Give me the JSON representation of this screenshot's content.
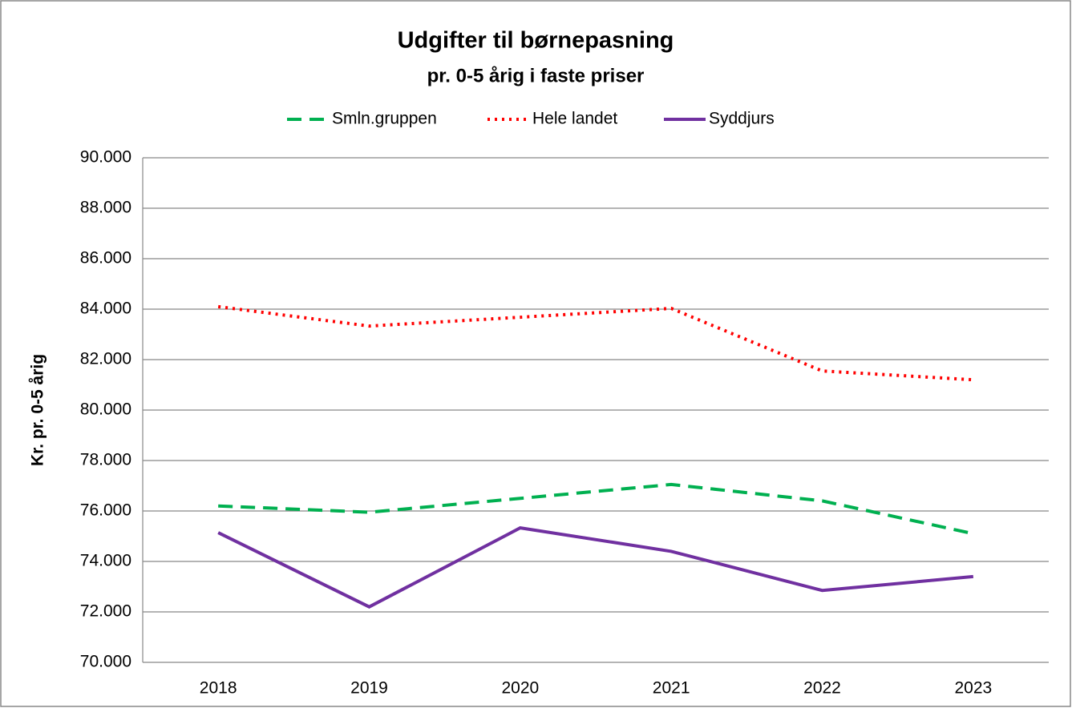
{
  "chart_data": {
    "type": "line",
    "title": "Udgifter til børnepasning",
    "subtitle": "pr. 0-5 årig i faste priser",
    "y_label": "Kr. pr. 0-5 årig",
    "categories": [
      "2018",
      "2019",
      "2020",
      "2021",
      "2022",
      "2023"
    ],
    "series": [
      {
        "name": "Smln.gruppen",
        "color": "#00b050",
        "dash": "dashed",
        "values": [
          76200,
          75950,
          76500,
          77050,
          76400,
          75100
        ]
      },
      {
        "name": "Hele landet",
        "color": "#ff0000",
        "dash": "dotted",
        "values": [
          84100,
          83330,
          83680,
          84030,
          81550,
          81200
        ]
      },
      {
        "name": "Syddjurs",
        "color": "#7030a0",
        "dash": "solid",
        "values": [
          75140,
          72200,
          75330,
          74400,
          72850,
          73400
        ]
      }
    ],
    "ylim": [
      70000,
      90000
    ],
    "yticks": [
      {
        "value": 70000,
        "label": "70.000"
      },
      {
        "value": 72000,
        "label": "72.000"
      },
      {
        "value": 74000,
        "label": "74.000"
      },
      {
        "value": 76000,
        "label": "76.000"
      },
      {
        "value": 78000,
        "label": "78.000"
      },
      {
        "value": 80000,
        "label": "80.000"
      },
      {
        "value": 82000,
        "label": "82.000"
      },
      {
        "value": 84000,
        "label": "84.000"
      },
      {
        "value": 86000,
        "label": "86.000"
      },
      {
        "value": 88000,
        "label": "88.000"
      },
      {
        "value": 90000,
        "label": "90.000"
      }
    ],
    "grid": true,
    "legend": "top"
  }
}
